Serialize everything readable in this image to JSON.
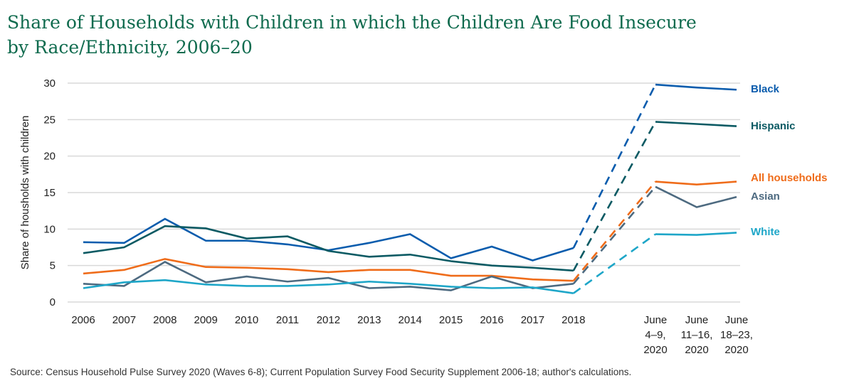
{
  "title": "Share of Households with Children in which the Children Are Food Insecure by Race/Ethnicity, 2006–20",
  "source": "Source: Census Household Pulse Survey 2020 (Waves 6-8); Current Population Survey Food Security Supplement 2006-18; author's calculations.",
  "chart_data": {
    "type": "line",
    "title": "Share of Households with Children in which the Children Are Food Insecure by Race/Ethnicity, 2006–20",
    "ylabel": "Share of housholds with children",
    "xlabel": "",
    "ylim": [
      0,
      30
    ],
    "yticks": [
      0,
      5,
      10,
      15,
      20,
      25,
      30
    ],
    "grid": true,
    "legend": "direct labels at right end",
    "categories": [
      "2006",
      "2007",
      "2008",
      "2009",
      "2010",
      "2011",
      "2012",
      "2013",
      "2014",
      "2015",
      "2016",
      "2017",
      "2018",
      [
        "June",
        "4–9,",
        "2020"
      ],
      [
        "June",
        "11–16,",
        "2020"
      ],
      [
        "June",
        "18–23,",
        "2020"
      ]
    ],
    "series": [
      {
        "name": "Black",
        "color": "#0a5cad",
        "values": [
          8.2,
          8.1,
          11.4,
          8.4,
          8.4,
          7.9,
          7.1,
          8.1,
          9.3,
          6.0,
          7.6,
          5.7,
          7.4,
          29.8,
          29.4,
          29.1
        ]
      },
      {
        "name": "Hispanic",
        "color": "#0b5a63",
        "values": [
          6.7,
          7.5,
          10.4,
          10.1,
          8.7,
          9.0,
          7.0,
          6.2,
          6.5,
          5.6,
          5.0,
          4.7,
          4.3,
          24.7,
          24.4,
          24.1
        ]
      },
      {
        "name": "All households",
        "color": "#ef6c1a",
        "values": [
          3.9,
          4.4,
          5.9,
          4.8,
          4.7,
          4.5,
          4.1,
          4.4,
          4.4,
          3.6,
          3.6,
          3.1,
          2.9,
          16.5,
          16.1,
          16.5
        ]
      },
      {
        "name": "Asian",
        "color": "#4d6a80",
        "values": [
          2.5,
          2.2,
          5.5,
          2.7,
          3.5,
          2.8,
          3.3,
          1.9,
          2.1,
          1.6,
          3.5,
          1.9,
          2.5,
          15.8,
          13.0,
          14.4
        ]
      },
      {
        "name": "White",
        "color": "#1ea6c8",
        "values": [
          1.9,
          2.7,
          3.0,
          2.4,
          2.2,
          2.2,
          2.4,
          2.8,
          2.5,
          2.1,
          1.9,
          2.0,
          1.2,
          9.3,
          9.2,
          9.5
        ]
      }
    ]
  }
}
